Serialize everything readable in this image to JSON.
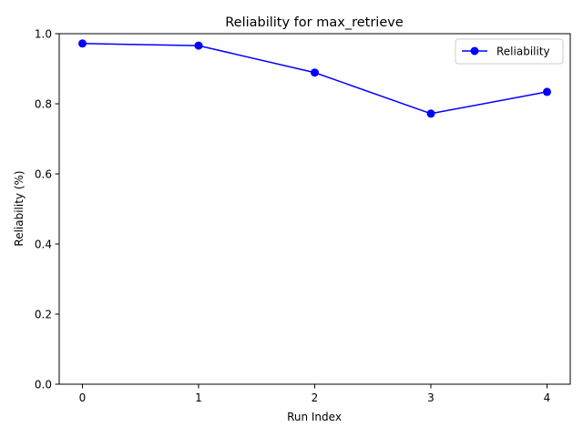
{
  "chart_data": {
    "type": "line",
    "title": "Reliability for max_retrieve",
    "xlabel": "Run Index",
    "ylabel": "Reliability (%)",
    "x": [
      0,
      1,
      2,
      3,
      4
    ],
    "xlim": [
      -0.2,
      4.2
    ],
    "ylim": [
      0,
      1.0
    ],
    "xticks": [
      "0",
      "1",
      "2",
      "3",
      "4"
    ],
    "yticks": [
      "0.0",
      "0.2",
      "0.4",
      "0.6",
      "0.8",
      "1.0"
    ],
    "series": [
      {
        "name": "Reliability",
        "values": [
          0.972,
          0.966,
          0.889,
          0.772,
          0.834
        ],
        "color": "#0000ff",
        "marker": "circle"
      }
    ],
    "legend_position": "top-right",
    "grid": false
  }
}
